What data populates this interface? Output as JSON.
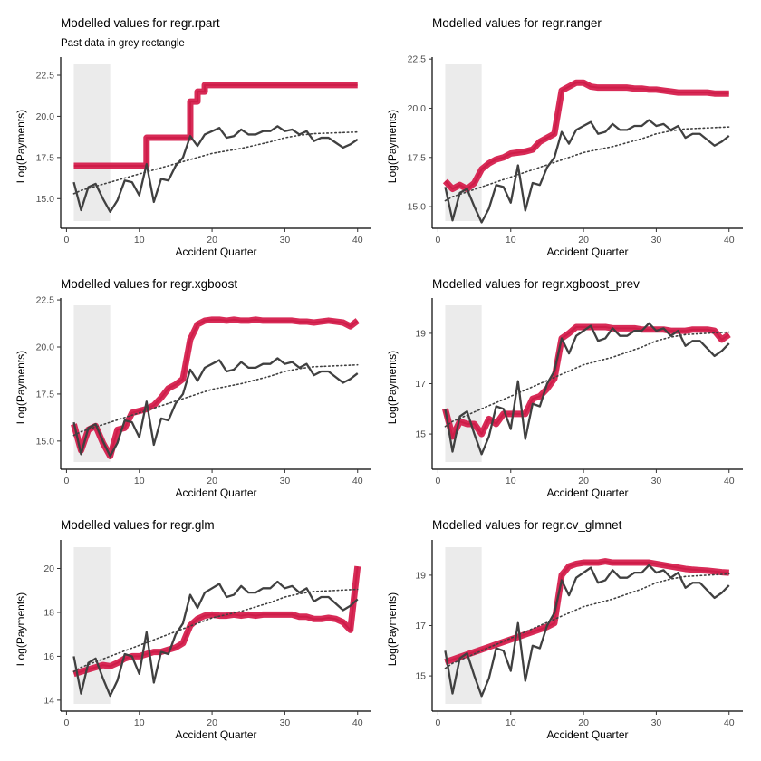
{
  "chart_data": [
    {
      "type": "line",
      "title": "Modelled values for regr.rpart",
      "subtitle": "Past data in grey rectangle",
      "xlabel": "Accident Quarter",
      "ylabel": "Log(Payments)",
      "xlim": [
        -0.8,
        41.9
      ],
      "ylim": [
        13.2,
        23.6
      ],
      "xticks": [
        0,
        10,
        20,
        30,
        40
      ],
      "yticks": [
        15.0,
        17.5,
        20.0,
        22.5
      ],
      "ytick_labels": [
        "15.0",
        "17.5",
        "20.0",
        "22.5"
      ],
      "past_data_range": [
        1,
        6
      ],
      "colors": {
        "actual": "#404040",
        "trend": "#404040",
        "model": "#d6204e",
        "past": "#ebebeb"
      },
      "x": [
        1,
        2,
        3,
        4,
        5,
        6,
        7,
        8,
        9,
        10,
        11,
        12,
        13,
        14,
        15,
        16,
        17,
        18,
        19,
        20,
        21,
        22,
        23,
        24,
        25,
        26,
        27,
        28,
        29,
        30,
        31,
        32,
        33,
        34,
        35,
        36,
        37,
        38,
        39,
        40
      ],
      "actual": [
        16.0,
        14.3,
        15.7,
        15.9,
        15.0,
        14.2,
        14.9,
        16.1,
        16.0,
        15.2,
        17.1,
        14.8,
        16.2,
        16.1,
        17.0,
        17.5,
        18.8,
        18.2,
        18.9,
        19.1,
        19.3,
        18.7,
        18.8,
        19.2,
        18.9,
        18.9,
        19.1,
        19.1,
        19.4,
        19.1,
        19.2,
        18.9,
        19.1,
        18.5,
        18.7,
        18.7,
        18.4,
        18.1,
        18.3,
        18.6
      ],
      "trend": [
        15.3,
        15.5,
        15.75,
        16.0,
        16.25,
        16.5,
        16.75,
        17.0,
        17.25,
        17.5,
        17.75,
        17.9,
        18.05,
        18.25,
        18.45,
        18.7,
        18.85,
        18.95,
        19.0,
        19.05
      ],
      "trend_x": [
        1,
        2,
        4,
        6,
        8,
        10,
        12,
        14,
        16,
        18,
        20,
        22,
        24,
        26,
        28,
        30,
        32,
        34,
        37,
        40
      ],
      "model": [
        17.0,
        17.0,
        17.0,
        17.0,
        17.0,
        17.0,
        17.0,
        17.0,
        17.0,
        17.0,
        18.7,
        18.7,
        18.7,
        18.7,
        18.7,
        18.7,
        20.9,
        21.5,
        21.9,
        21.9,
        21.9,
        21.9,
        21.9,
        21.9,
        21.9,
        21.9,
        21.9,
        21.9,
        21.9,
        21.9,
        21.9,
        21.9,
        21.9,
        21.9,
        21.9,
        21.9,
        21.9,
        21.9,
        21.9,
        21.9
      ],
      "model_steps": true
    },
    {
      "type": "line",
      "title": "Modelled values for regr.ranger",
      "subtitle": "",
      "xlabel": "Accident Quarter",
      "ylabel": "Log(Payments)",
      "xlim": [
        -0.8,
        41.9
      ],
      "ylim": [
        13.9,
        22.6
      ],
      "xticks": [
        0,
        10,
        20,
        30,
        40
      ],
      "yticks": [
        15.0,
        17.5,
        20.0,
        22.5
      ],
      "ytick_labels": [
        "15.0",
        "17.5",
        "20.0",
        "22.5"
      ],
      "past_data_range": [
        1,
        6
      ],
      "x": [
        1,
        2,
        3,
        4,
        5,
        6,
        7,
        8,
        9,
        10,
        11,
        12,
        13,
        14,
        15,
        16,
        17,
        18,
        19,
        20,
        21,
        22,
        23,
        24,
        25,
        26,
        27,
        28,
        29,
        30,
        31,
        32,
        33,
        34,
        35,
        36,
        37,
        38,
        39,
        40
      ],
      "actual": [
        16.0,
        14.3,
        15.7,
        15.9,
        15.0,
        14.2,
        14.9,
        16.1,
        16.0,
        15.2,
        17.1,
        14.8,
        16.2,
        16.1,
        17.0,
        17.5,
        18.8,
        18.2,
        18.9,
        19.1,
        19.3,
        18.7,
        18.8,
        19.2,
        18.9,
        18.9,
        19.1,
        19.1,
        19.4,
        19.1,
        19.2,
        18.9,
        19.1,
        18.5,
        18.7,
        18.7,
        18.4,
        18.1,
        18.3,
        18.6
      ],
      "trend": [
        15.3,
        15.5,
        15.75,
        16.0,
        16.25,
        16.5,
        16.75,
        17.0,
        17.25,
        17.5,
        17.75,
        17.9,
        18.05,
        18.25,
        18.45,
        18.7,
        18.85,
        18.95,
        19.0,
        19.05
      ],
      "trend_x": [
        1,
        2,
        4,
        6,
        8,
        10,
        12,
        14,
        16,
        18,
        20,
        22,
        24,
        26,
        28,
        30,
        32,
        34,
        37,
        40
      ],
      "model": [
        16.3,
        15.9,
        16.1,
        15.9,
        16.2,
        16.9,
        17.2,
        17.4,
        17.5,
        17.7,
        17.75,
        17.8,
        17.9,
        18.3,
        18.5,
        18.7,
        20.9,
        21.1,
        21.3,
        21.3,
        21.1,
        21.05,
        21.05,
        21.05,
        21.05,
        21.05,
        21.0,
        21.0,
        20.95,
        20.95,
        20.9,
        20.85,
        20.8,
        20.8,
        20.8,
        20.8,
        20.8,
        20.75,
        20.75,
        20.75
      ],
      "model_steps": false
    },
    {
      "type": "line",
      "title": "Modelled values for regr.xgboost",
      "subtitle": "",
      "xlabel": "Accident Quarter",
      "ylabel": "Log(Payments)",
      "xlim": [
        -0.8,
        41.9
      ],
      "ylim": [
        13.5,
        22.6
      ],
      "xticks": [
        0,
        10,
        20,
        30,
        40
      ],
      "yticks": [
        15.0,
        17.5,
        20.0,
        22.5
      ],
      "ytick_labels": [
        "15.0",
        "17.5",
        "20.0",
        "22.5"
      ],
      "past_data_range": [
        1,
        6
      ],
      "x": [
        1,
        2,
        3,
        4,
        5,
        6,
        7,
        8,
        9,
        10,
        11,
        12,
        13,
        14,
        15,
        16,
        17,
        18,
        19,
        20,
        21,
        22,
        23,
        24,
        25,
        26,
        27,
        28,
        29,
        30,
        31,
        32,
        33,
        34,
        35,
        36,
        37,
        38,
        39,
        40
      ],
      "actual": [
        16.0,
        14.3,
        15.7,
        15.9,
        15.0,
        14.2,
        14.9,
        16.1,
        16.0,
        15.2,
        17.1,
        14.8,
        16.2,
        16.1,
        17.0,
        17.5,
        18.8,
        18.2,
        18.9,
        19.1,
        19.3,
        18.7,
        18.8,
        19.2,
        18.9,
        18.9,
        19.1,
        19.1,
        19.4,
        19.1,
        19.2,
        18.9,
        19.1,
        18.5,
        18.7,
        18.7,
        18.4,
        18.1,
        18.3,
        18.6
      ],
      "trend": [
        15.3,
        15.5,
        15.75,
        16.0,
        16.25,
        16.5,
        16.75,
        17.0,
        17.25,
        17.5,
        17.75,
        17.9,
        18.05,
        18.25,
        18.45,
        18.7,
        18.85,
        18.95,
        19.0,
        19.05
      ],
      "trend_x": [
        1,
        2,
        4,
        6,
        8,
        10,
        12,
        14,
        16,
        18,
        20,
        22,
        24,
        26,
        28,
        30,
        32,
        34,
        37,
        40
      ],
      "model": [
        15.9,
        14.5,
        15.6,
        15.8,
        14.9,
        14.2,
        15.6,
        15.7,
        16.5,
        16.6,
        16.7,
        16.9,
        17.3,
        17.8,
        18.0,
        18.3,
        20.4,
        21.2,
        21.4,
        21.45,
        21.45,
        21.4,
        21.45,
        21.4,
        21.4,
        21.45,
        21.4,
        21.4,
        21.4,
        21.4,
        21.4,
        21.35,
        21.35,
        21.3,
        21.35,
        21.4,
        21.35,
        21.3,
        21.1,
        21.4
      ],
      "model_steps": false
    },
    {
      "type": "line",
      "title": "Modelled values for regr.xgboost_prev",
      "subtitle": "",
      "xlabel": "Accident Quarter",
      "ylabel": "Log(Payments)",
      "xlim": [
        -0.8,
        41.9
      ],
      "ylim": [
        13.6,
        20.4
      ],
      "xticks": [
        0,
        10,
        20,
        30,
        40
      ],
      "yticks": [
        15,
        17,
        19
      ],
      "ytick_labels": [
        "15",
        "17",
        "19"
      ],
      "past_data_range": [
        1,
        6
      ],
      "x": [
        1,
        2,
        3,
        4,
        5,
        6,
        7,
        8,
        9,
        10,
        11,
        12,
        13,
        14,
        15,
        16,
        17,
        18,
        19,
        20,
        21,
        22,
        23,
        24,
        25,
        26,
        27,
        28,
        29,
        30,
        31,
        32,
        33,
        34,
        35,
        36,
        37,
        38,
        39,
        40
      ],
      "actual": [
        16.0,
        14.3,
        15.7,
        15.9,
        15.0,
        14.2,
        14.9,
        16.1,
        16.0,
        15.2,
        17.1,
        14.8,
        16.2,
        16.1,
        17.0,
        17.5,
        18.8,
        18.2,
        18.9,
        19.1,
        19.3,
        18.7,
        18.8,
        19.2,
        18.9,
        18.9,
        19.1,
        19.1,
        19.4,
        19.1,
        19.2,
        18.9,
        19.1,
        18.5,
        18.7,
        18.7,
        18.4,
        18.1,
        18.3,
        18.6
      ],
      "trend": [
        15.3,
        15.5,
        15.75,
        16.0,
        16.25,
        16.5,
        16.75,
        17.0,
        17.25,
        17.5,
        17.75,
        17.9,
        18.05,
        18.25,
        18.45,
        18.7,
        18.85,
        18.95,
        19.0,
        19.05
      ],
      "trend_x": [
        1,
        2,
        4,
        6,
        8,
        10,
        12,
        14,
        16,
        18,
        20,
        22,
        24,
        26,
        28,
        30,
        32,
        34,
        37,
        40
      ],
      "model": [
        16.0,
        14.9,
        15.5,
        15.4,
        15.4,
        15.0,
        15.6,
        15.4,
        15.8,
        15.8,
        15.8,
        15.8,
        16.4,
        16.5,
        16.8,
        17.2,
        18.8,
        19.0,
        19.25,
        19.25,
        19.25,
        19.25,
        19.25,
        19.2,
        19.2,
        19.2,
        19.2,
        19.15,
        19.15,
        19.15,
        19.15,
        19.1,
        19.1,
        19.1,
        19.15,
        19.15,
        19.15,
        19.1,
        18.75,
        18.95
      ],
      "model_steps": false
    },
    {
      "type": "line",
      "title": "Modelled values for regr.glm",
      "subtitle": "",
      "xlabel": "Accident Quarter",
      "ylabel": "Log(Payments)",
      "xlim": [
        -0.8,
        41.9
      ],
      "ylim": [
        13.5,
        21.3
      ],
      "xticks": [
        0,
        10,
        20,
        30,
        40
      ],
      "yticks": [
        14,
        16,
        18,
        20
      ],
      "ytick_labels": [
        "14",
        "16",
        "18",
        "20"
      ],
      "past_data_range": [
        1,
        6
      ],
      "x": [
        1,
        2,
        3,
        4,
        5,
        6,
        7,
        8,
        9,
        10,
        11,
        12,
        13,
        14,
        15,
        16,
        17,
        18,
        19,
        20,
        21,
        22,
        23,
        24,
        25,
        26,
        27,
        28,
        29,
        30,
        31,
        32,
        33,
        34,
        35,
        36,
        37,
        38,
        39,
        40
      ],
      "actual": [
        16.0,
        14.3,
        15.7,
        15.9,
        15.0,
        14.2,
        14.9,
        16.1,
        16.0,
        15.2,
        17.1,
        14.8,
        16.2,
        16.1,
        17.0,
        17.5,
        18.8,
        18.2,
        18.9,
        19.1,
        19.3,
        18.7,
        18.8,
        19.2,
        18.9,
        18.9,
        19.1,
        19.1,
        19.4,
        19.1,
        19.2,
        18.9,
        19.1,
        18.5,
        18.7,
        18.7,
        18.4,
        18.1,
        18.3,
        18.6
      ],
      "trend": [
        15.3,
        15.5,
        15.75,
        16.0,
        16.25,
        16.5,
        16.75,
        17.0,
        17.25,
        17.5,
        17.75,
        17.9,
        18.05,
        18.25,
        18.45,
        18.7,
        18.85,
        18.95,
        19.0,
        19.05
      ],
      "trend_x": [
        1,
        2,
        4,
        6,
        8,
        10,
        12,
        14,
        16,
        18,
        20,
        22,
        24,
        26,
        28,
        30,
        32,
        34,
        37,
        40
      ],
      "model": [
        15.2,
        15.3,
        15.4,
        15.5,
        15.6,
        15.55,
        15.7,
        15.9,
        16.0,
        16.0,
        16.1,
        16.2,
        16.2,
        16.3,
        16.4,
        16.6,
        17.4,
        17.7,
        17.85,
        17.9,
        17.85,
        17.85,
        17.9,
        17.85,
        17.9,
        17.85,
        17.9,
        17.9,
        17.9,
        17.9,
        17.9,
        17.8,
        17.8,
        17.7,
        17.7,
        17.75,
        17.7,
        17.55,
        17.2,
        20.1
      ],
      "model_steps": false
    },
    {
      "type": "line",
      "title": "Modelled values for regr.cv_glmnet",
      "subtitle": "",
      "xlabel": "Accident Quarter",
      "ylabel": "Log(Payments)",
      "xlim": [
        -0.8,
        41.9
      ],
      "ylim": [
        13.6,
        20.4
      ],
      "xticks": [
        0,
        10,
        20,
        30,
        40
      ],
      "yticks": [
        15,
        17,
        19
      ],
      "ytick_labels": [
        "15",
        "17",
        "19"
      ],
      "past_data_range": [
        1,
        6
      ],
      "x": [
        1,
        2,
        3,
        4,
        5,
        6,
        7,
        8,
        9,
        10,
        11,
        12,
        13,
        14,
        15,
        16,
        17,
        18,
        19,
        20,
        21,
        22,
        23,
        24,
        25,
        26,
        27,
        28,
        29,
        30,
        31,
        32,
        33,
        34,
        35,
        36,
        37,
        38,
        39,
        40
      ],
      "actual": [
        16.0,
        14.3,
        15.7,
        15.9,
        15.0,
        14.2,
        14.9,
        16.1,
        16.0,
        15.2,
        17.1,
        14.8,
        16.2,
        16.1,
        17.0,
        17.5,
        18.8,
        18.2,
        18.9,
        19.1,
        19.3,
        18.7,
        18.8,
        19.2,
        18.9,
        18.9,
        19.1,
        19.1,
        19.4,
        19.1,
        19.2,
        18.9,
        19.1,
        18.5,
        18.7,
        18.7,
        18.4,
        18.1,
        18.3,
        18.6
      ],
      "trend": [
        15.3,
        15.5,
        15.75,
        16.0,
        16.25,
        16.5,
        16.75,
        17.0,
        17.25,
        17.5,
        17.75,
        17.9,
        18.05,
        18.25,
        18.45,
        18.7,
        18.85,
        18.95,
        19.0,
        19.05
      ],
      "trend_x": [
        1,
        2,
        4,
        6,
        8,
        10,
        12,
        14,
        16,
        18,
        20,
        22,
        24,
        26,
        28,
        30,
        32,
        34,
        37,
        40
      ],
      "model": [
        15.55,
        15.65,
        15.75,
        15.85,
        15.95,
        16.05,
        16.15,
        16.25,
        16.35,
        16.45,
        16.55,
        16.65,
        16.75,
        16.85,
        16.95,
        17.1,
        19.0,
        19.35,
        19.45,
        19.5,
        19.5,
        19.5,
        19.55,
        19.5,
        19.5,
        19.5,
        19.5,
        19.5,
        19.5,
        19.45,
        19.4,
        19.35,
        19.3,
        19.25,
        19.22,
        19.2,
        19.18,
        19.15,
        19.12,
        19.1
      ],
      "model_steps": false
    }
  ]
}
